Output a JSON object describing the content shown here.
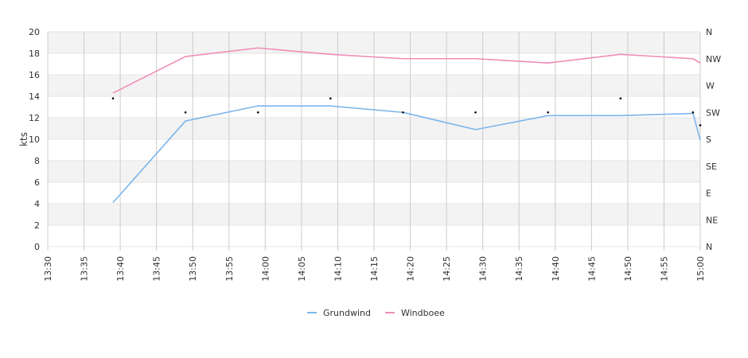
{
  "chart_data": {
    "type": "line",
    "ylabel": "kts",
    "ylim": [
      0,
      20
    ],
    "y_ticks": [
      "0",
      "2",
      "4",
      "6",
      "8",
      "10",
      "12",
      "14",
      "16",
      "18",
      "20"
    ],
    "y2_ticks": [
      "N",
      "NE",
      "E",
      "SE",
      "S",
      "SW",
      "W",
      "NW",
      "N"
    ],
    "x_range": [
      "13:30",
      "15:00"
    ],
    "x_ticks": [
      "13:30",
      "13:35",
      "13:40",
      "13:45",
      "13:50",
      "13:55",
      "14:00",
      "14:05",
      "14:10",
      "14:15",
      "14:20",
      "14:25",
      "14:30",
      "14:35",
      "14:40",
      "14:45",
      "14:50",
      "14:55",
      "15:00"
    ],
    "grid": true,
    "legend_position": "bottom",
    "series": [
      {
        "name": "Grundwind",
        "color": "#7cb5ec",
        "x": [
          "13:39",
          "13:49",
          "13:59",
          "14:09",
          "14:19",
          "14:29",
          "14:39",
          "14:49",
          "14:59",
          "15:00"
        ],
        "values": [
          4.1,
          11.7,
          13.1,
          13.1,
          12.5,
          10.9,
          12.2,
          12.2,
          12.4,
          9.9
        ]
      },
      {
        "name": "Windboee",
        "color": "#f08cb8",
        "x": [
          "13:39",
          "13:49",
          "13:59",
          "14:09",
          "14:19",
          "14:29",
          "14:39",
          "14:49",
          "14:59",
          "15:00"
        ],
        "values": [
          14.3,
          17.7,
          18.5,
          17.9,
          17.5,
          17.5,
          17.1,
          17.9,
          17.5,
          17.1
        ]
      }
    ],
    "direction_points": {
      "x": [
        "13:39",
        "13:49",
        "13:59",
        "14:09",
        "14:19",
        "14:29",
        "14:39",
        "14:49",
        "14:59",
        "15:00"
      ],
      "values": [
        13.8,
        12.5,
        12.5,
        13.8,
        12.5,
        12.5,
        12.5,
        13.8,
        12.5,
        11.3
      ]
    }
  }
}
